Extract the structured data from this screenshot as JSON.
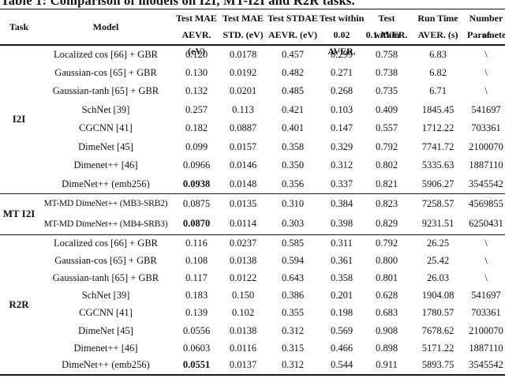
{
  "title": "Table 1: Comparison of models on I2I, MT-I2I and R2R tasks.",
  "table": {
    "header": {
      "task": "Task",
      "model": "Model",
      "columns": [
        {
          "line1": "Test MAE",
          "line2": "AEVR. (eV)"
        },
        {
          "line1": "Test MAE",
          "line2": "STD. (eV)"
        },
        {
          "line1": "Test STDAE",
          "line2": "AEVR. (eV)"
        },
        {
          "line1": "Test within",
          "line2": "0.02 AVER."
        },
        {
          "line1": "Test within",
          "line2": "0.1 AVER."
        },
        {
          "line1": "Run Time",
          "line2": "AVER. (s)"
        },
        {
          "line1": "Number of",
          "line2": "Parameters"
        }
      ]
    },
    "sections": [
      {
        "task": "I2I",
        "rows": [
          {
            "model": "Localized cos [66] + GBR",
            "values": [
              "0.120",
              "0.0178",
              "0.457",
              "0.299",
              "0.758",
              "6.83",
              "\\"
            ],
            "bold": []
          },
          {
            "model": "Gaussian-cos [65] + GBR",
            "values": [
              "0.130",
              "0.0192",
              "0.482",
              "0.271",
              "0.738",
              "6.82",
              "\\"
            ],
            "bold": []
          },
          {
            "model": "Gaussian-tanh [65] + GBR",
            "values": [
              "0.132",
              "0.0201",
              "0.485",
              "0.268",
              "0.735",
              "6.71",
              "\\"
            ],
            "bold": []
          },
          {
            "model": "SchNet [39]",
            "values": [
              "0.257",
              "0.113",
              "0.421",
              "0.103",
              "0.409",
              "1845.45",
              "541697"
            ],
            "bold": []
          },
          {
            "model": "CGCNN [41]",
            "values": [
              "0.182",
              "0.0887",
              "0.401",
              "0.147",
              "0.557",
              "1712.22",
              "703361"
            ],
            "bold": []
          },
          {
            "model": "DimeNet [45]",
            "values": [
              "0.099",
              "0.0157",
              "0.358",
              "0.329",
              "0.792",
              "7741.72",
              "2100070"
            ],
            "bold": []
          },
          {
            "model": "Dimenet++ [46]",
            "values": [
              "0.0966",
              "0.0146",
              "0.350",
              "0.312",
              "0.802",
              "5335.63",
              "1887110"
            ],
            "bold": []
          },
          {
            "model": "DimeNet++ (emb256)",
            "values": [
              "0.0938",
              "0.0148",
              "0.356",
              "0.337",
              "0.821",
              "5906.27",
              "3545542"
            ],
            "bold": [
              0
            ]
          }
        ]
      },
      {
        "task": "MT I2I",
        "rows": [
          {
            "model": "MT-MD DimeNet++ (MB3-SRB2)",
            "values": [
              "0.0875",
              "0.0135",
              "0.310",
              "0.384",
              "0.823",
              "7258.57",
              "4569855"
            ],
            "bold": []
          },
          {
            "model": "MT-MD DimeNet++ (MB4-SRB3)",
            "values": [
              "0.0870",
              "0.0114",
              "0.303",
              "0.398",
              "0.829",
              "9231.51",
              "6250431"
            ],
            "bold": [
              0
            ]
          }
        ]
      },
      {
        "task": "R2R",
        "rows": [
          {
            "model": "Localized cos [66] + GBR",
            "values": [
              "0.116",
              "0.0237",
              "0.585",
              "0.311",
              "0.792",
              "26.25",
              "\\"
            ],
            "bold": []
          },
          {
            "model": "Gaussian-cos [65] + GBR",
            "values": [
              "0.108",
              "0.0138",
              "0.594",
              "0.361",
              "0.800",
              "25.42",
              "\\"
            ],
            "bold": []
          },
          {
            "model": "Gaussian-tanh [65] + GBR",
            "values": [
              "0.117",
              "0.0122",
              "0.643",
              "0.358",
              "0.801",
              "26.03",
              "\\"
            ],
            "bold": []
          },
          {
            "model": "SchNet [39]",
            "values": [
              "0.183",
              "0.150",
              "0.386",
              "0.201",
              "0.628",
              "1904.08",
              "541697"
            ],
            "bold": []
          },
          {
            "model": "CGCNN [41]",
            "values": [
              "0.139",
              "0.102",
              "0.355",
              "0.198",
              "0.683",
              "1780.57",
              "703361"
            ],
            "bold": []
          },
          {
            "model": "DimeNet [45]",
            "values": [
              "0.0556",
              "0.0138",
              "0.312",
              "0.569",
              "0.908",
              "7678.62",
              "2100070"
            ],
            "bold": []
          },
          {
            "model": "Dimenet++ [46]",
            "values": [
              "0.0603",
              "0.0116",
              "0.315",
              "0.466",
              "0.898",
              "5171.22",
              "1887110"
            ],
            "bold": []
          },
          {
            "model": "DimeNet++ (emb256)",
            "values": [
              "0.0551",
              "0.0137",
              "0.312",
              "0.544",
              "0.911",
              "5893.75",
              "3545542"
            ],
            "bold": [
              0
            ]
          }
        ]
      }
    ]
  }
}
